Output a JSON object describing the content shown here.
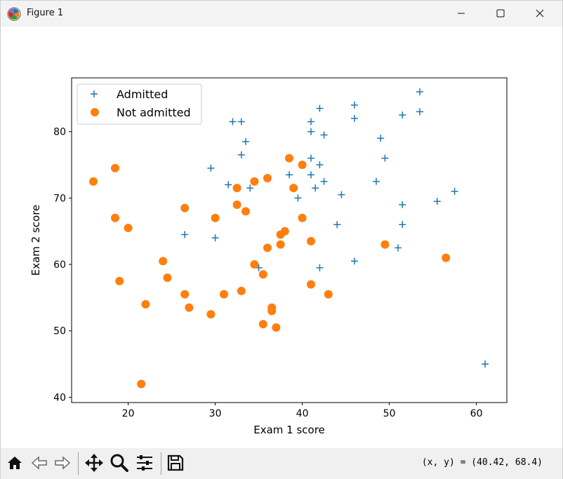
{
  "window": {
    "title": "Figure 1",
    "minimize_icon": "minimize-icon",
    "maximize_icon": "maximize-icon",
    "close_icon": "close-icon"
  },
  "toolbar": {
    "buttons": [
      "home-icon",
      "back-icon",
      "forward-icon",
      "pan-icon",
      "zoom-icon",
      "configure-subplots-icon",
      "save-icon"
    ],
    "coords_text": "(x, y) = (40.42, 68.4)"
  },
  "chart_data": {
    "type": "scatter",
    "title": "",
    "xlabel": "Exam 1 score",
    "ylabel": "Exam 2 score",
    "xlim": [
      13.5,
      63.5
    ],
    "ylim": [
      39.2,
      88.1
    ],
    "xticks": [
      20,
      30,
      40,
      50,
      60
    ],
    "yticks": [
      40,
      50,
      60,
      70,
      80
    ],
    "grid": false,
    "legend_position": "top-left",
    "series": [
      {
        "name": "Admitted",
        "marker": "+",
        "color": "#1f77b4",
        "points": [
          [
            32.0,
            81.5
          ],
          [
            33.0,
            81.5
          ],
          [
            33.5,
            78.5
          ],
          [
            33.0,
            76.5
          ],
          [
            29.5,
            74.5
          ],
          [
            31.5,
            72.0
          ],
          [
            34.0,
            71.5
          ],
          [
            26.5,
            64.5
          ],
          [
            30.0,
            64.0
          ],
          [
            35.0,
            59.5
          ],
          [
            38.5,
            73.5
          ],
          [
            39.5,
            70.0
          ],
          [
            41.0,
            81.5
          ],
          [
            41.0,
            80.0
          ],
          [
            41.0,
            76.0
          ],
          [
            42.0,
            83.5
          ],
          [
            42.5,
            79.5
          ],
          [
            42.0,
            75.0
          ],
          [
            41.0,
            73.5
          ],
          [
            42.5,
            72.5
          ],
          [
            41.5,
            71.5
          ],
          [
            44.5,
            70.5
          ],
          [
            44.0,
            66.0
          ],
          [
            42.0,
            59.5
          ],
          [
            46.0,
            60.5
          ],
          [
            46.0,
            84.0
          ],
          [
            46.0,
            82.0
          ],
          [
            49.0,
            79.0
          ],
          [
            49.5,
            76.0
          ],
          [
            48.5,
            72.5
          ],
          [
            51.5,
            82.5
          ],
          [
            53.5,
            86.0
          ],
          [
            53.5,
            83.0
          ],
          [
            51.5,
            69.0
          ],
          [
            51.5,
            66.0
          ],
          [
            51.0,
            62.5
          ],
          [
            55.5,
            69.5
          ],
          [
            57.5,
            71.0
          ],
          [
            61.0,
            45.0
          ]
        ]
      },
      {
        "name": "Not admitted",
        "marker": "o",
        "color": "#ff7f0e",
        "points": [
          [
            16.0,
            72.5
          ],
          [
            18.5,
            74.5
          ],
          [
            18.5,
            67.0
          ],
          [
            20.0,
            65.5
          ],
          [
            19.0,
            57.5
          ],
          [
            22.0,
            54.0
          ],
          [
            21.5,
            42.0
          ],
          [
            24.0,
            60.5
          ],
          [
            24.5,
            58.0
          ],
          [
            26.5,
            68.5
          ],
          [
            26.5,
            55.5
          ],
          [
            27.0,
            53.5
          ],
          [
            29.5,
            52.5
          ],
          [
            30.0,
            67.0
          ],
          [
            31.0,
            55.5
          ],
          [
            32.5,
            71.5
          ],
          [
            32.5,
            69.0
          ],
          [
            33.5,
            68.0
          ],
          [
            33.0,
            56.0
          ],
          [
            34.5,
            72.5
          ],
          [
            36.0,
            73.0
          ],
          [
            34.5,
            60.0
          ],
          [
            35.5,
            58.5
          ],
          [
            36.0,
            62.5
          ],
          [
            36.5,
            53.5
          ],
          [
            36.5,
            53.0
          ],
          [
            35.5,
            51.0
          ],
          [
            37.0,
            50.5
          ],
          [
            37.5,
            64.5
          ],
          [
            37.5,
            63.0
          ],
          [
            38.0,
            65.0
          ],
          [
            38.5,
            76.0
          ],
          [
            39.0,
            71.5
          ],
          [
            40.0,
            75.0
          ],
          [
            40.0,
            67.0
          ],
          [
            41.0,
            63.5
          ],
          [
            41.0,
            57.0
          ],
          [
            43.0,
            55.5
          ],
          [
            49.5,
            63.0
          ],
          [
            56.5,
            61.0
          ]
        ]
      }
    ]
  }
}
